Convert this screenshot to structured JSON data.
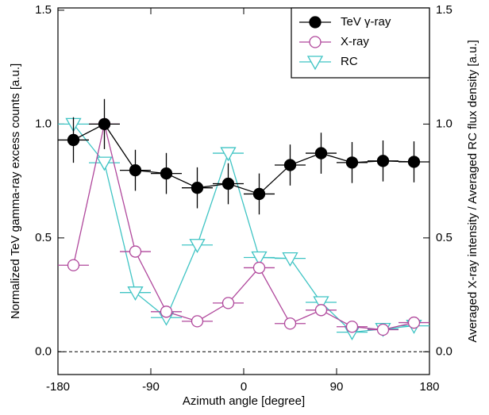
{
  "chart_data": {
    "type": "line",
    "xlabel": "Azimuth angle [degree]",
    "ylabel": "Normalized TeV gamma-ray excess counts [a.u.]",
    "y2label": "Averaged X-ray intensity / Averaged RC flux density [a.u.]",
    "x": [
      -165,
      -135,
      -105,
      -75,
      -45,
      -15,
      15,
      45,
      75,
      105,
      135,
      165
    ],
    "xerr": 15,
    "xlim": [
      -180,
      180
    ],
    "xticks": [
      -180,
      -90,
      0,
      90,
      180
    ],
    "ylim": [
      -0.1,
      1.51
    ],
    "yticks": [
      {
        "value": 0,
        "label": "0.0"
      },
      0.5,
      {
        "value": 1,
        "label": "1.0"
      },
      1.5
    ],
    "y2lim": [
      -0.1,
      1.51
    ],
    "y2ticks": [
      {
        "value": 0,
        "label": "0.0"
      },
      0.5,
      {
        "value": 1,
        "label": "1.0"
      },
      1.5
    ],
    "hline": 0,
    "legend": "upper right",
    "series": [
      {
        "name": "TeV γ-ray",
        "color": "#000000",
        "marker": "circle-filled",
        "values": [
          0.93,
          1.0,
          0.797,
          0.783,
          0.72,
          0.738,
          0.693,
          0.82,
          0.872,
          0.831,
          0.838,
          0.834
        ],
        "errors": [
          0.1,
          0.11,
          0.09,
          0.09,
          0.09,
          0.09,
          0.09,
          0.09,
          0.09,
          0.09,
          0.09,
          0.09
        ]
      },
      {
        "name": "X-ray",
        "color": "#b0489c",
        "marker": "circle",
        "axis": "y2",
        "values": [
          0.38,
          1.0,
          0.44,
          0.176,
          0.134,
          0.214,
          0.369,
          0.124,
          0.183,
          0.11,
          0.097,
          0.128
        ]
      },
      {
        "name": "RC",
        "color": "#3fc4c4",
        "marker": "triangle-down",
        "axis": "y2",
        "values": [
          1.0,
          0.83,
          0.26,
          0.15,
          0.469,
          0.872,
          0.414,
          0.41,
          0.217,
          0.086,
          0.1,
          0.114
        ]
      }
    ]
  }
}
